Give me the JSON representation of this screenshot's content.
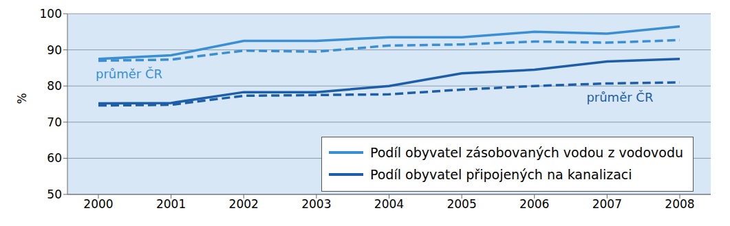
{
  "chart_data": {
    "type": "line",
    "y_label": "%",
    "categories": [
      "2000",
      "2001",
      "2002",
      "2003",
      "2004",
      "2005",
      "2006",
      "2007",
      "2008"
    ],
    "ylim": [
      50,
      100
    ],
    "yticks": [
      50,
      60,
      70,
      80,
      90,
      100
    ],
    "grid": true,
    "legend": "lower right",
    "series": [
      {
        "name": "Podíl obyvatel zásobovaných vodou z vodovodu",
        "color": "#3a8fd4",
        "line_style": "solid",
        "values": [
          87.5,
          88.5,
          92.5,
          92.5,
          93.5,
          93.5,
          95,
          94.5,
          96.5
        ]
      },
      {
        "name": "průměr ČR",
        "color": "#3a8fd4",
        "line_style": "dashed",
        "values": [
          87,
          87.3,
          89.8,
          89.5,
          91.2,
          91.5,
          92.3,
          92,
          92.7
        ]
      },
      {
        "name": "Podíl obyvatel připojených na kanalizaci",
        "color": "#1d5ea8",
        "line_style": "solid",
        "values": [
          75.2,
          75.3,
          78.3,
          78.3,
          80,
          83.5,
          84.5,
          86.8,
          87.5
        ]
      },
      {
        "name": "průměr ČR",
        "color": "#1d5ea8",
        "line_style": "dashed",
        "values": [
          74.6,
          74.8,
          77.3,
          77.5,
          77.7,
          79,
          80,
          80.7,
          81
        ]
      }
    ]
  }
}
